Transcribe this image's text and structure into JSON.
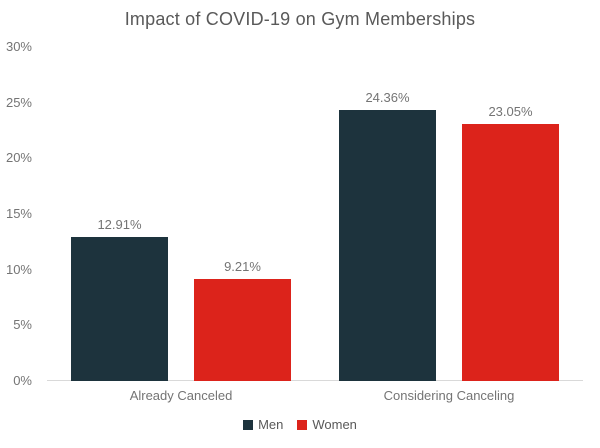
{
  "chart_data": {
    "type": "bar",
    "title": "Impact of COVID-19 on Gym Memberships",
    "categories": [
      "Already Canceled",
      "Considering Canceling"
    ],
    "series": [
      {
        "name": "Men",
        "color": "#1d333d",
        "values": [
          12.91,
          24.36
        ],
        "labels": [
          "12.91%",
          "24.36%"
        ]
      },
      {
        "name": "Women",
        "color": "#dc231b",
        "values": [
          9.21,
          23.05
        ],
        "labels": [
          "9.21%",
          "23.05%"
        ]
      }
    ],
    "xlabel": "",
    "ylabel": "",
    "ylim": [
      0,
      30
    ],
    "y_tick_step": 5,
    "y_tick_labels": [
      "0%",
      "5%",
      "10%",
      "15%",
      "20%",
      "25%",
      "30%"
    ],
    "grid": false,
    "legend_position": "bottom"
  },
  "style": {
    "background": "#ffffff",
    "title_color": "#595959",
    "axis_text_color": "#747474",
    "axis_line_color": "#d9d9d9",
    "legend_text_color": "#595959"
  }
}
